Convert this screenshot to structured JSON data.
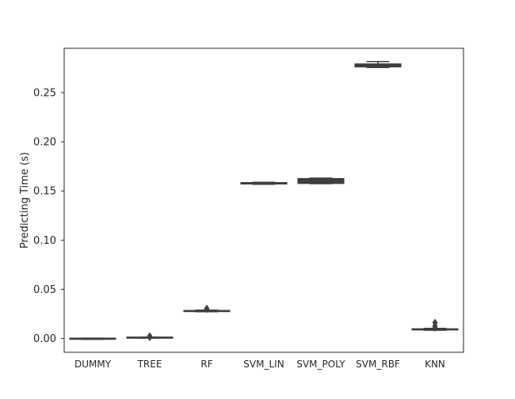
{
  "chart_data": {
    "type": "box",
    "xlabel": "",
    "ylabel": "Predicting Time (s)",
    "ylim": [
      -0.014,
      0.295
    ],
    "yticks": [
      0.0,
      0.05,
      0.1,
      0.15,
      0.2,
      0.25
    ],
    "ytick_labels": [
      "0.00",
      "0.05",
      "0.10",
      "0.15",
      "0.20",
      "0.25"
    ],
    "grid": false,
    "categories": [
      "DUMMY",
      "TREE",
      "RF",
      "SVM_LIN",
      "SVM_POLY",
      "SVM_RBF",
      "KNN"
    ],
    "box_color": "#3f3f3f",
    "boxes": [
      {
        "label": "DUMMY",
        "whislo": -0.0008,
        "q1": -0.0004,
        "median": -0.0002,
        "q3": 0.0,
        "whishi": 0.0004,
        "fliers": []
      },
      {
        "label": "TREE",
        "whislo": 0.0005,
        "q1": 0.0007,
        "median": 0.0009,
        "q3": 0.0011,
        "whishi": 0.0013,
        "fliers": [
          0.0025,
          0.0012
        ]
      },
      {
        "label": "RF",
        "whislo": 0.0272,
        "q1": 0.0276,
        "median": 0.0279,
        "q3": 0.0283,
        "whishi": 0.0288,
        "fliers": [
          0.0305,
          0.0298
        ]
      },
      {
        "label": "SVM_LIN",
        "whislo": 0.1568,
        "q1": 0.1572,
        "median": 0.1577,
        "q3": 0.1584,
        "whishi": 0.1588,
        "fliers": []
      },
      {
        "label": "SVM_POLY",
        "whislo": 0.1574,
        "q1": 0.1577,
        "median": 0.1602,
        "q3": 0.1625,
        "whishi": 0.163,
        "fliers": []
      },
      {
        "label": "SVM_RBF",
        "whislo": 0.2755,
        "q1": 0.2762,
        "median": 0.2772,
        "q3": 0.279,
        "whishi": 0.2815,
        "fliers": []
      },
      {
        "label": "KNN",
        "whislo": 0.0084,
        "q1": 0.0088,
        "median": 0.0093,
        "q3": 0.0098,
        "whishi": 0.0103,
        "fliers": [
          0.0162,
          0.0128,
          0.0108
        ]
      }
    ]
  }
}
